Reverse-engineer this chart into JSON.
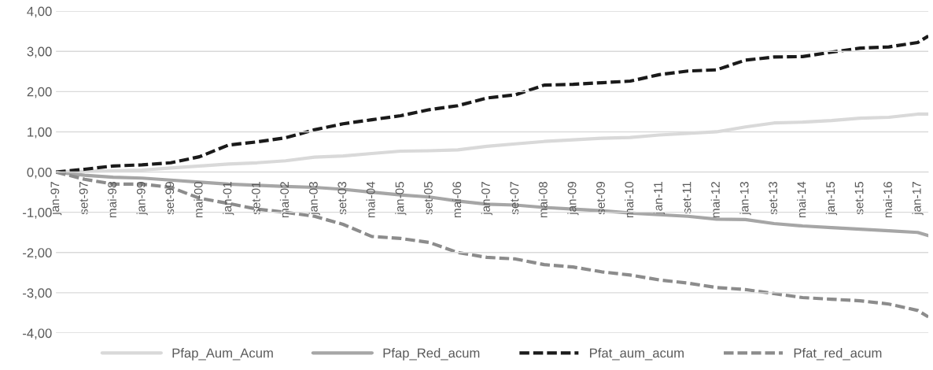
{
  "chart_data": {
    "type": "line",
    "x": [
      "1997-01",
      "1997-09",
      "1998-05",
      "1999-01",
      "1999-09",
      "2000-05",
      "2001-01",
      "2001-09",
      "2002-05",
      "2003-01",
      "2003-09",
      "2004-05",
      "2005-01",
      "2005-09",
      "2006-05",
      "2007-01",
      "2007-09",
      "2008-05",
      "2009-01",
      "2009-09",
      "2010-05",
      "2011-01",
      "2011-09",
      "2012-05",
      "2013-01",
      "2013-09",
      "2014-05",
      "2015-01",
      "2015-09",
      "2016-05",
      "2017-01",
      "2017-04"
    ],
    "series": [
      {
        "name": "Pfap_Aum_Acum",
        "color": "#d9d9d9",
        "line_style": "solid",
        "values": [
          0,
          0.02,
          0.03,
          0.05,
          0.1,
          0.15,
          0.2,
          0.23,
          0.28,
          0.37,
          0.4,
          0.46,
          0.52,
          0.53,
          0.55,
          0.64,
          0.7,
          0.76,
          0.8,
          0.84,
          0.86,
          0.92,
          0.96,
          1.0,
          1.12,
          1.22,
          1.24,
          1.28,
          1.34,
          1.36,
          1.44,
          1.44
        ]
      },
      {
        "name": "Pfap_Red_acum",
        "color": "#a6a6a6",
        "line_style": "solid",
        "values": [
          0,
          -0.08,
          -0.13,
          -0.15,
          -0.2,
          -0.25,
          -0.3,
          -0.33,
          -0.36,
          -0.38,
          -0.43,
          -0.5,
          -0.57,
          -0.62,
          -0.72,
          -0.8,
          -0.82,
          -0.88,
          -0.92,
          -0.96,
          -1.02,
          -1.06,
          -1.1,
          -1.17,
          -1.18,
          -1.28,
          -1.34,
          -1.38,
          -1.42,
          -1.46,
          -1.5,
          -1.58
        ]
      },
      {
        "name": "Pfat_aum_acum",
        "color": "#1a1a1a",
        "line_style": "dashed",
        "values": [
          0,
          0.07,
          0.15,
          0.18,
          0.23,
          0.38,
          0.67,
          0.75,
          0.85,
          1.05,
          1.2,
          1.3,
          1.4,
          1.55,
          1.65,
          1.84,
          1.92,
          2.16,
          2.18,
          2.22,
          2.26,
          2.42,
          2.51,
          2.54,
          2.78,
          2.86,
          2.87,
          2.98,
          3.08,
          3.11,
          3.22,
          3.38
        ]
      },
      {
        "name": "Pfat_red_acum",
        "color": "#8c8c8c",
        "line_style": "dashed",
        "values": [
          0,
          -0.18,
          -0.3,
          -0.3,
          -0.38,
          -0.65,
          -0.78,
          -0.92,
          -1.0,
          -1.1,
          -1.3,
          -1.6,
          -1.65,
          -1.75,
          -2.0,
          -2.12,
          -2.16,
          -2.3,
          -2.36,
          -2.48,
          -2.56,
          -2.68,
          -2.76,
          -2.87,
          -2.92,
          -3.02,
          -3.12,
          -3.16,
          -3.2,
          -3.28,
          -3.44,
          -3.6
        ]
      }
    ],
    "xlim": [
      "1997-01",
      "2017-04"
    ],
    "xticks": [
      {
        "value": "1997-01",
        "label": "jan-97"
      },
      {
        "value": "1997-09",
        "label": "set-97"
      },
      {
        "value": "1998-05",
        "label": "mai-98"
      },
      {
        "value": "1999-01",
        "label": "jan-99"
      },
      {
        "value": "1999-09",
        "label": "set-99"
      },
      {
        "value": "2000-05",
        "label": "mai-00"
      },
      {
        "value": "2001-01",
        "label": "jan-01"
      },
      {
        "value": "2001-09",
        "label": "set-01"
      },
      {
        "value": "2002-05",
        "label": "mai-02"
      },
      {
        "value": "2003-01",
        "label": "jan-03"
      },
      {
        "value": "2003-09",
        "label": "set-03"
      },
      {
        "value": "2004-05",
        "label": "mai-04"
      },
      {
        "value": "2005-01",
        "label": "jan-05"
      },
      {
        "value": "2005-09",
        "label": "set-05"
      },
      {
        "value": "2006-05",
        "label": "mai-06"
      },
      {
        "value": "2007-01",
        "label": "jan-07"
      },
      {
        "value": "2007-09",
        "label": "set-07"
      },
      {
        "value": "2008-05",
        "label": "mai-08"
      },
      {
        "value": "2009-01",
        "label": "jan-09"
      },
      {
        "value": "2009-09",
        "label": "set-09"
      },
      {
        "value": "2010-05",
        "label": "mai-10"
      },
      {
        "value": "2011-01",
        "label": "jan-11"
      },
      {
        "value": "2011-09",
        "label": "set-11"
      },
      {
        "value": "2012-05",
        "label": "mai-12"
      },
      {
        "value": "2013-01",
        "label": "jan-13"
      },
      {
        "value": "2013-09",
        "label": "set-13"
      },
      {
        "value": "2014-05",
        "label": "mai-14"
      },
      {
        "value": "2015-01",
        "label": "jan-15"
      },
      {
        "value": "2015-09",
        "label": "set-15"
      },
      {
        "value": "2016-05",
        "label": "mai-16"
      },
      {
        "value": "2017-01",
        "label": "jan-17"
      }
    ],
    "ylim": [
      -4,
      4
    ],
    "yticks": [
      {
        "value": 4,
        "label": "4,00"
      },
      {
        "value": 3,
        "label": "3,00"
      },
      {
        "value": 2,
        "label": "2,00"
      },
      {
        "value": 1,
        "label": "1,00"
      },
      {
        "value": 0,
        "label": "0,00"
      },
      {
        "value": -1,
        "label": "-1,00"
      },
      {
        "value": -2,
        "label": "-2,00"
      },
      {
        "value": -3,
        "label": "-3,00"
      },
      {
        "value": -4,
        "label": "-4,00"
      }
    ],
    "grid": "y",
    "legend": "bottom"
  }
}
